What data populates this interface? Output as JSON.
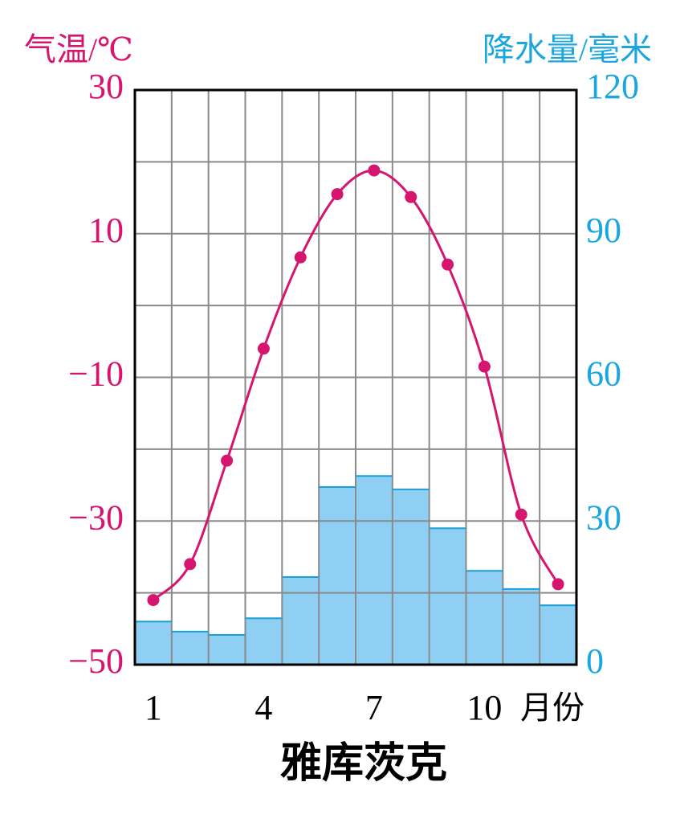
{
  "chart_data": {
    "type": "combo",
    "title": "雅库茨克",
    "y_label": "气温/℃",
    "y2_label": "降水量/毫米",
    "x_label": "月份",
    "categories": [
      "1",
      null,
      null,
      "4",
      null,
      null,
      "7",
      null,
      null,
      "10",
      null,
      null
    ],
    "series": [
      {
        "name": "气温",
        "kind": "line",
        "axis": "y",
        "color": "#d6156f",
        "values": [
          -41,
          -36,
          -21.6,
          -6,
          6.7,
          15.5,
          18.8,
          15.1,
          5.7,
          -8.5,
          -29.1,
          -38.8
        ]
      },
      {
        "name": "降水量",
        "kind": "bar",
        "axis": "y2",
        "color": "#8ecff3",
        "values": [
          9,
          6.9,
          6.2,
          9.7,
          18.3,
          37.1,
          39.4,
          36.6,
          28.5,
          19.6,
          15.8,
          12.4
        ]
      }
    ],
    "ylim": [
      -50,
      30
    ],
    "yticks": [
      {
        "value": -50,
        "label": "−50"
      },
      {
        "value": -30,
        "label": "−30"
      },
      {
        "value": -10,
        "label": "−10"
      },
      10,
      30
    ],
    "minor_yticks": [
      -40,
      -20,
      0,
      20
    ],
    "y2lim": [
      0,
      120
    ],
    "y2ticks": [
      0,
      30,
      60,
      90,
      120
    ],
    "y_color": "#d6156f",
    "y2_color": "#1aa6de",
    "grid": true
  }
}
